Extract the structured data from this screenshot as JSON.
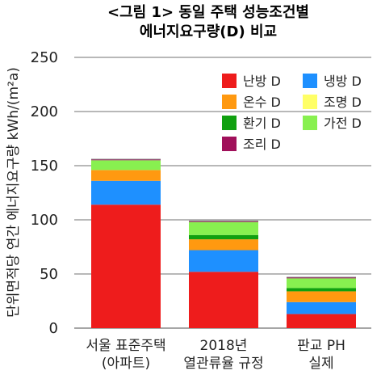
{
  "chart_data": {
    "type": "bar",
    "stacked": true,
    "title_lines": [
      "<그림 1> 동일 주택 성능조건별",
      "에너지요구량(D) 비교"
    ],
    "ylabel": "단위면적당 연간 에너지요구량 kWh/(m²a)",
    "ylim": [
      0,
      250
    ],
    "yticks": [
      "0",
      "50",
      "100",
      "150",
      "200",
      "250"
    ],
    "ytick_values": [
      0,
      50,
      100,
      150,
      200,
      250
    ],
    "grid": true,
    "legend_position": "top-right",
    "categories": [
      [
        "서울 표준주택",
        "(아파트)"
      ],
      [
        "2018년",
        "열관류율 규정"
      ],
      [
        "판교 PH",
        "실제"
      ]
    ],
    "series": [
      {
        "name": "난방 D",
        "color": "#ee1c1c",
        "values": [
          114,
          52,
          13
        ]
      },
      {
        "name": "냉방 D",
        "color": "#1e90ff",
        "values": [
          22,
          20,
          11
        ]
      },
      {
        "name": "온수 D",
        "color": "#ff9910",
        "values": [
          10,
          10,
          10
        ]
      },
      {
        "name": "조명 D",
        "color": "#ffff66",
        "values": [
          0,
          0,
          0
        ]
      },
      {
        "name": "환기 D",
        "color": "#10a010",
        "values": [
          0,
          4,
          3
        ]
      },
      {
        "name": "가전 D",
        "color": "#88f050",
        "values": [
          9,
          12,
          9
        ]
      },
      {
        "name": "조리 D",
        "color": "#a0105a",
        "values": [
          1,
          1,
          1
        ]
      }
    ]
  }
}
